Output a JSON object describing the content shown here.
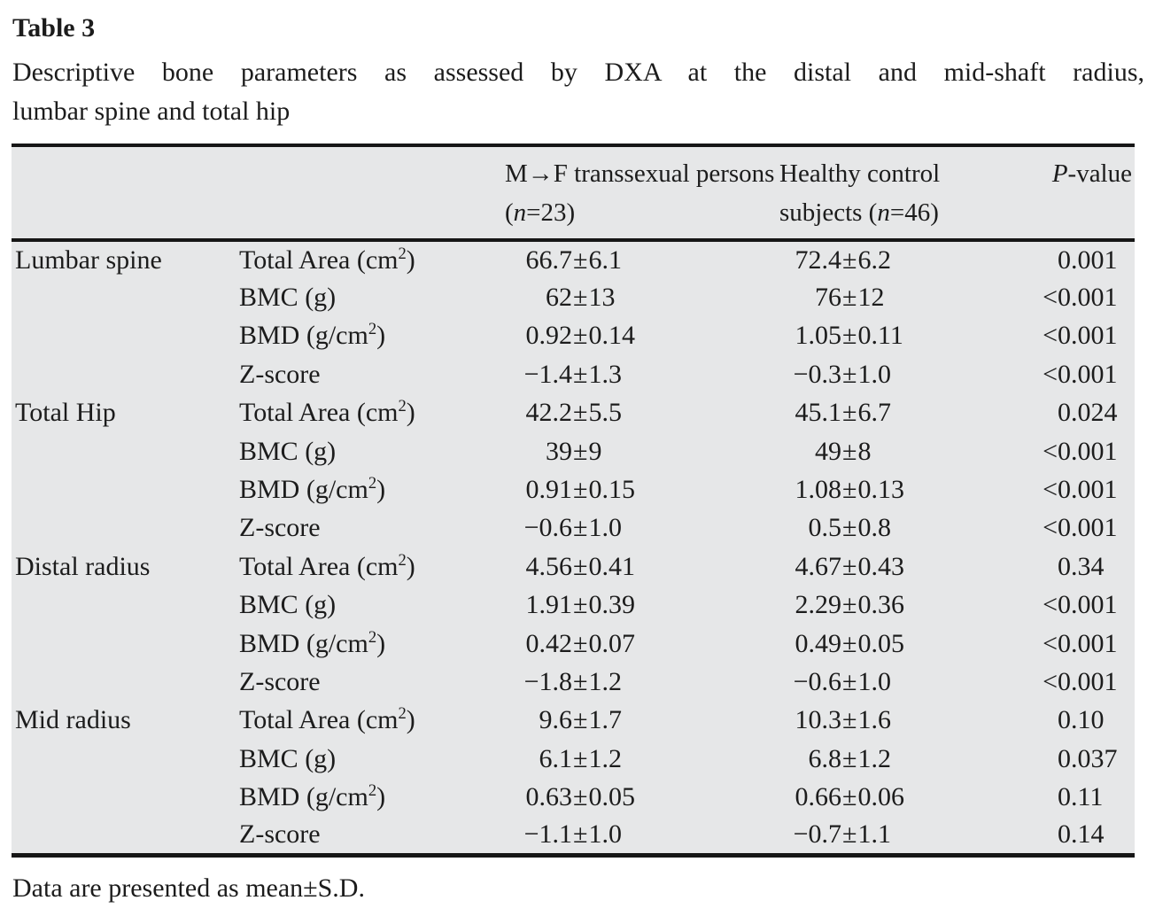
{
  "page": {
    "title": "Table 3",
    "caption_line1": "Descriptive bone parameters as assessed by DXA at the distal and mid-shaft radius,",
    "caption_line2": "lumbar spine and total hip",
    "footnote": "Data are presented as mean±S.D."
  },
  "colors": {
    "table_shading": "#e6e7e8",
    "rule": "#161616",
    "text": "#1c1c1c"
  },
  "table": {
    "header": {
      "site_col": "",
      "parameter_col": "",
      "group1": "M→F transsexual persons (n=23)",
      "group2": "Healthy control subjects (n=46)",
      "p": "P-value"
    },
    "sections": [
      {
        "label": "Lumbar spine",
        "rows": [
          {
            "parameter": "Total Area (cm^2)",
            "group1": "66.7±6.1",
            "group2": "72.4±6.2",
            "p": "0.001"
          },
          {
            "parameter": "BMC (g)",
            "group1": "62±13",
            "group2": "76±12",
            "p": "<0.001"
          },
          {
            "parameter": "BMD (g/cm^2)",
            "group1": "0.92±0.14",
            "group2": "1.05±0.11",
            "p": "<0.001"
          },
          {
            "parameter": "Z-score",
            "group1": "−1.4±1.3",
            "group2": "−0.3±1.0",
            "p": "<0.001"
          }
        ]
      },
      {
        "label": "Total Hip",
        "rows": [
          {
            "parameter": "Total Area (cm^2)",
            "group1": "42.2±5.5",
            "group2": "45.1±6.7",
            "p": "0.024"
          },
          {
            "parameter": "BMC (g)",
            "group1": "39±9",
            "group2": "49±8",
            "p": "<0.001"
          },
          {
            "parameter": "BMD (g/cm^2)",
            "group1": "0.91±0.15",
            "group2": "1.08±0.13",
            "p": "<0.001"
          },
          {
            "parameter": "Z-score",
            "group1": "−0.6±1.0",
            "group2": "0.5±0.8",
            "p": "<0.001"
          }
        ]
      },
      {
        "label": "Distal radius",
        "rows": [
          {
            "parameter": "Total Area (cm^2)",
            "group1": "4.56±0.41",
            "group2": "4.67±0.43",
            "p": "0.34"
          },
          {
            "parameter": "BMC (g)",
            "group1": "1.91±0.39",
            "group2": "2.29±0.36",
            "p": "<0.001"
          },
          {
            "parameter": "BMD (g/cm^2)",
            "group1": "0.42±0.07",
            "group2": "0.49±0.05",
            "p": "<0.001"
          },
          {
            "parameter": "Z-score",
            "group1": "−1.8±1.2",
            "group2": "−0.6±1.0",
            "p": "<0.001"
          }
        ]
      },
      {
        "label": "Mid radius",
        "rows": [
          {
            "parameter": "Total Area (cm^2)",
            "group1": "9.6±1.7",
            "group2": "10.3±1.6",
            "p": "0.10"
          },
          {
            "parameter": "BMC (g)",
            "group1": "6.1±1.2",
            "group2": "6.8±1.2",
            "p": "0.037"
          },
          {
            "parameter": "BMD (g/cm^2)",
            "group1": "0.63±0.05",
            "group2": "0.66±0.06",
            "p": "0.11"
          },
          {
            "parameter": "Z-score",
            "group1": "−1.1±1.0",
            "group2": "−0.7±1.1",
            "p": "0.14"
          }
        ]
      }
    ]
  }
}
